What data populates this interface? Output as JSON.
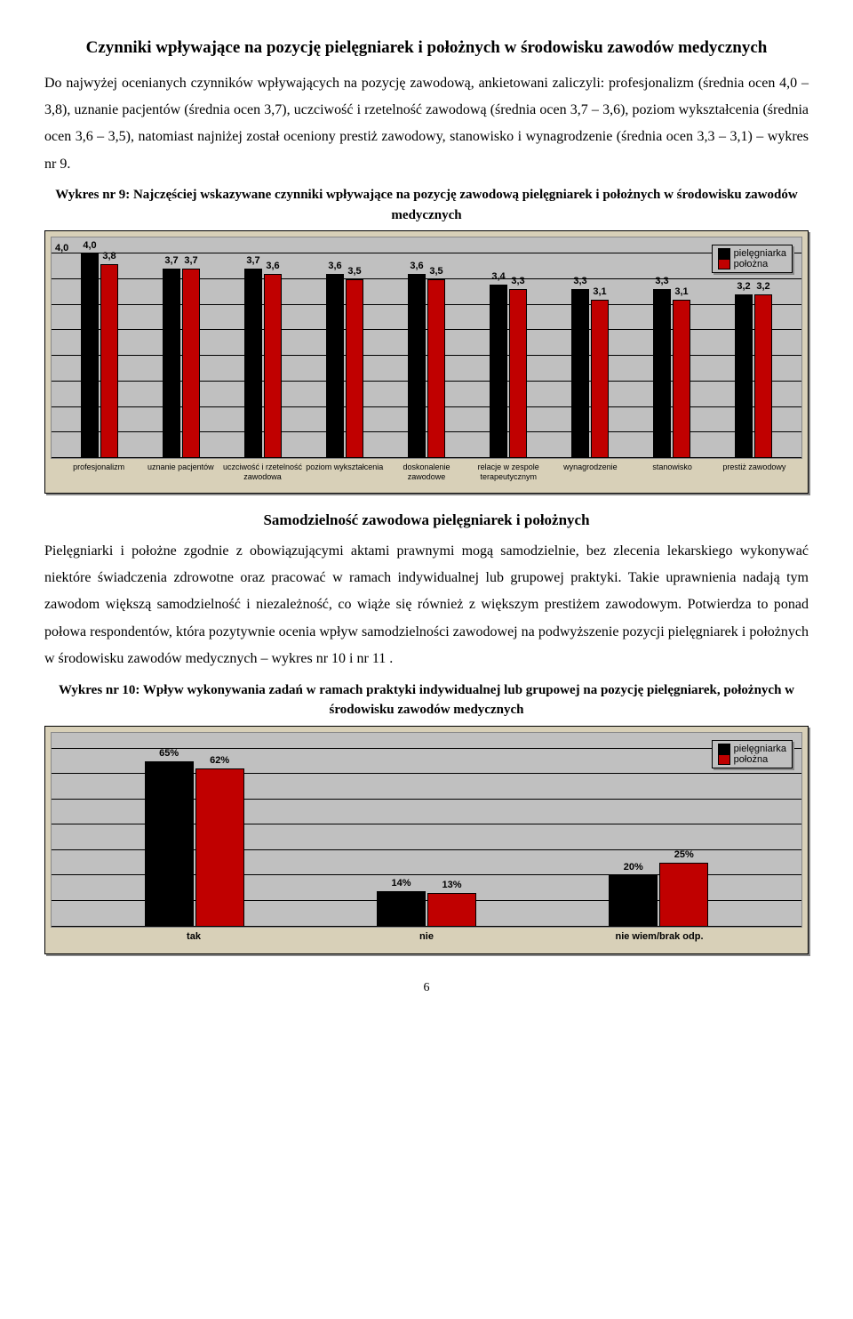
{
  "section1": {
    "heading": "Czynniki wpływające na pozycję pielęgniarek i położnych w środowisku zawodów medycznych",
    "para": "Do najwyżej ocenianych czynników wpływających na pozycję zawodową, ankietowani zaliczyli: profesjonalizm (średnia ocen 4,0 – 3,8), uznanie pacjentów (średnia ocen 3,7), uczciwość i rzetelność zawodową (średnia ocen 3,7 – 3,6), poziom wykształcenia (średnia ocen 3,6 – 3,5), natomiast najniżej został oceniony prestiż zawodowy, stanowisko i wynagrodzenie (średnia ocen 3,3 – 3,1) – wykres nr 9.",
    "caption": "Wykres nr 9: Najczęściej wskazywane czynniki wpływające na pozycję zawodową pielęgniarek i położnych w środowisku zawodów medycznych"
  },
  "chart9": {
    "type": "bar",
    "background_color": "#c0c0c0",
    "outer_background": "#d8d0b8",
    "y_max": 4.0,
    "y_label_first": "4,0",
    "grid_steps": 8,
    "legend": {
      "series1": "pielęgniarka",
      "series2": "położna",
      "color1": "#000000",
      "color2": "#c00000"
    },
    "categories": [
      "profesjonalizm",
      "uznanie pacjentów",
      "uczciwość i rzetelność zawodowa",
      "poziom wykształcenia",
      "doskonalenie zawodowe",
      "relacje w zespole terapeutycznym",
      "wynagrodzenie",
      "stanowisko",
      "prestiż zawodowy"
    ],
    "series1": [
      4.0,
      3.7,
      3.7,
      3.6,
      3.6,
      3.4,
      3.3,
      3.3,
      3.2
    ],
    "series1_labels": [
      "4,0",
      "3,7",
      "3,7",
      "3,6",
      "3,6",
      "3,4",
      "3,3",
      "3,3",
      "3,2"
    ],
    "series2": [
      3.8,
      3.7,
      3.6,
      3.5,
      3.5,
      3.3,
      3.1,
      3.1,
      3.2
    ],
    "series2_labels": [
      "3,8",
      "3,7",
      "3,6",
      "3,5",
      "3,5",
      "3,3",
      "3,1",
      "3,1",
      "3,2"
    ]
  },
  "section2": {
    "heading": "Samodzielność zawodowa pielęgniarek i położnych",
    "para": "Pielęgniarki i położne zgodnie z obowiązującymi aktami prawnymi mogą samodzielnie, bez zlecenia lekarskiego wykonywać niektóre świadczenia zdrowotne oraz pracować w ramach indywidualnej lub grupowej praktyki. Takie uprawnienia nadają tym zawodom większą samodzielność i niezależność, co wiąże się również z większym prestiżem zawodowym. Potwierdza to ponad połowa respondentów, która pozytywnie ocenia wpływ samodzielności zawodowej na podwyższenie pozycji pielęgniarek i położnych w środowisku zawodów medycznych – wykres nr 10 i nr 11 .",
    "caption": "Wykres nr 10: Wpływ wykonywania zadań w ramach praktyki indywidualnej lub grupowej na pozycję pielęgniarek, położnych w środowisku zawodów medycznych"
  },
  "chart10": {
    "type": "bar",
    "background_color": "#c0c0c0",
    "outer_background": "#d8d0b8",
    "y_max": 70,
    "grid_steps": 7,
    "legend": {
      "series1": "pielęgniarka",
      "series2": "położna",
      "color1": "#000000",
      "color2": "#c00000"
    },
    "categories": [
      "tak",
      "nie",
      "nie wiem/brak odp."
    ],
    "series1": [
      65,
      14,
      20
    ],
    "series1_labels": [
      "65%",
      "14%",
      "20%"
    ],
    "series2": [
      62,
      13,
      25
    ],
    "series2_labels": [
      "62%",
      "13%",
      "25%"
    ]
  },
  "page_number": "6"
}
